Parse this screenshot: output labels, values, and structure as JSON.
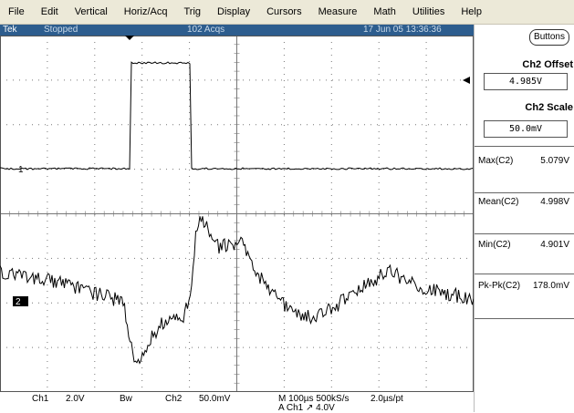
{
  "menu": [
    "File",
    "Edit",
    "Vertical",
    "Horiz/Acq",
    "Trig",
    "Display",
    "Cursors",
    "Measure",
    "Math",
    "Utilities",
    "Help"
  ],
  "status": {
    "brand": "Tek",
    "state": "Stopped",
    "acqs": "102 Acqs",
    "datetime": "17 Jun 05 13:36:36"
  },
  "side": {
    "buttons_label": "Buttons",
    "offset_title": "Ch2 Offset",
    "offset_value": "4.985V",
    "scale_title": "Ch2 Scale",
    "scale_value": "50.0mV",
    "measurements": [
      {
        "label": "Max(C2)",
        "value": "5.079V"
      },
      {
        "label": "Mean(C2)",
        "value": "4.998V"
      },
      {
        "label": "Min(C2)",
        "value": "4.901V"
      },
      {
        "label": "Pk-Pk(C2)",
        "value": "178.0mV"
      }
    ]
  },
  "markers": {
    "ch1": "1",
    "ch2": "2"
  },
  "bottom": {
    "ch1": "Ch1",
    "ch1_scale": "2.0V",
    "bw": "Bw",
    "ch2": "Ch2",
    "ch2_scale": "50.0mV",
    "timebase": "M 100µs 500kS/s",
    "res": "2.0µs/pt",
    "trigger": "A  Ch1  ↗  4.0V"
  },
  "colors": {
    "status_bg": "#2d5d8e",
    "menu_bg": "#ece9d8",
    "trace": "#000000"
  }
}
